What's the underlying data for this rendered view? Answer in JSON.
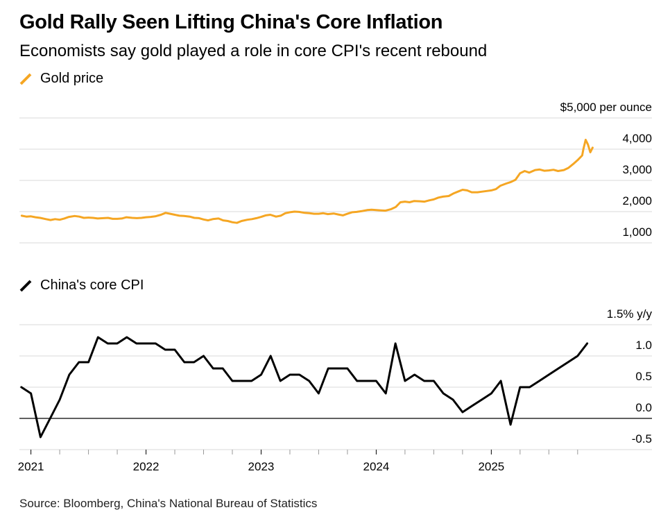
{
  "title": "Gold Rally Seen Lifting China's Core Inflation",
  "subtitle": "Economists say gold played a role in core CPI's recent rebound",
  "source": "Source: Bloomberg, China's National Bureau of Statistics",
  "colors": {
    "gold": "#F5A623",
    "cpi": "#000000",
    "grid": "#d9d9d9",
    "zero": "#000000"
  },
  "chart_data": [
    {
      "type": "line",
      "legend": "Gold price",
      "unit_label": "$5,000 per ounce",
      "ylim": [
        1000,
        5000
      ],
      "yticks": [
        1000,
        2000,
        3000,
        4000,
        5000
      ],
      "ytick_labels": [
        "1,000",
        "2,000",
        "3,000",
        "4,000",
        "$5,000 per ounce"
      ],
      "xlim": [
        2020.9,
        2025.95
      ],
      "series": [
        {
          "x": [
            2020.92,
            2020.96,
            2021.0,
            2021.04,
            2021.08,
            2021.13,
            2021.17,
            2021.21,
            2021.25,
            2021.29,
            2021.33,
            2021.38,
            2021.42,
            2021.46,
            2021.5,
            2021.54,
            2021.58,
            2021.63,
            2021.67,
            2021.71,
            2021.75,
            2021.79,
            2021.83,
            2021.88,
            2021.92,
            2021.96,
            2022.0,
            2022.04,
            2022.08,
            2022.13,
            2022.17,
            2022.21,
            2022.25,
            2022.29,
            2022.33,
            2022.38,
            2022.42,
            2022.46,
            2022.5,
            2022.54,
            2022.58,
            2022.63,
            2022.67,
            2022.71,
            2022.75,
            2022.79,
            2022.83,
            2022.88,
            2022.92,
            2022.96,
            2023.0,
            2023.04,
            2023.08,
            2023.13,
            2023.17,
            2023.21,
            2023.25,
            2023.29,
            2023.33,
            2023.38,
            2023.42,
            2023.46,
            2023.5,
            2023.54,
            2023.58,
            2023.63,
            2023.67,
            2023.71,
            2023.75,
            2023.79,
            2023.83,
            2023.88,
            2023.92,
            2023.96,
            2024.0,
            2024.04,
            2024.08,
            2024.13,
            2024.17,
            2024.21,
            2024.25,
            2024.29,
            2024.33,
            2024.38,
            2024.42,
            2024.46,
            2024.5,
            2024.54,
            2024.58,
            2024.63,
            2024.67,
            2024.71,
            2024.75,
            2024.79,
            2024.83,
            2024.88,
            2024.92,
            2024.96,
            2025.0,
            2025.04,
            2025.08,
            2025.13,
            2025.17,
            2025.21,
            2025.25,
            2025.29,
            2025.33,
            2025.38,
            2025.42,
            2025.46,
            2025.5,
            2025.54,
            2025.58,
            2025.63,
            2025.67,
            2025.71,
            2025.75,
            2025.79,
            2025.8,
            2025.82,
            2025.84,
            2025.86,
            2025.88
          ],
          "y": [
            1870,
            1840,
            1850,
            1820,
            1800,
            1760,
            1730,
            1760,
            1740,
            1780,
            1830,
            1860,
            1840,
            1800,
            1810,
            1800,
            1780,
            1790,
            1800,
            1770,
            1770,
            1780,
            1820,
            1800,
            1790,
            1800,
            1820,
            1830,
            1850,
            1900,
            1960,
            1930,
            1900,
            1870,
            1860,
            1840,
            1800,
            1790,
            1750,
            1720,
            1760,
            1780,
            1720,
            1700,
            1660,
            1640,
            1700,
            1740,
            1760,
            1790,
            1830,
            1880,
            1900,
            1840,
            1870,
            1950,
            1980,
            2000,
            1990,
            1960,
            1950,
            1930,
            1930,
            1950,
            1920,
            1940,
            1910,
            1880,
            1930,
            1980,
            1990,
            2020,
            2050,
            2060,
            2050,
            2040,
            2030,
            2080,
            2150,
            2300,
            2320,
            2300,
            2340,
            2330,
            2320,
            2360,
            2390,
            2450,
            2480,
            2500,
            2580,
            2640,
            2700,
            2680,
            2620,
            2620,
            2640,
            2660,
            2680,
            2720,
            2830,
            2900,
            2950,
            3020,
            3230,
            3300,
            3250,
            3330,
            3350,
            3310,
            3320,
            3340,
            3300,
            3330,
            3400,
            3520,
            3650,
            3800,
            4000,
            4300,
            4150,
            3900,
            4050
          ]
        }
      ]
    },
    {
      "type": "line",
      "legend": "China's core CPI",
      "unit_label": "1.5% y/y",
      "ylim": [
        -0.5,
        1.5
      ],
      "yticks": [
        -0.5,
        0.0,
        0.5,
        1.0,
        1.5
      ],
      "ytick_labels": [
        "-0.5",
        "0.0",
        "0.5",
        "1.0",
        "1.5% y/y"
      ],
      "xlim": [
        2020.9,
        2025.95
      ],
      "xticks": [
        2021,
        2022,
        2023,
        2024,
        2025
      ],
      "xtick_labels": [
        "2021",
        "2022",
        "2023",
        "2024",
        "2025"
      ],
      "series": [
        {
          "x": [
            2020.917,
            2021.0,
            2021.083,
            2021.167,
            2021.25,
            2021.333,
            2021.417,
            2021.5,
            2021.583,
            2021.667,
            2021.75,
            2021.833,
            2021.917,
            2022.0,
            2022.083,
            2022.167,
            2022.25,
            2022.333,
            2022.417,
            2022.5,
            2022.583,
            2022.667,
            2022.75,
            2022.833,
            2022.917,
            2023.0,
            2023.083,
            2023.167,
            2023.25,
            2023.333,
            2023.417,
            2023.5,
            2023.583,
            2023.667,
            2023.75,
            2023.833,
            2023.917,
            2024.0,
            2024.083,
            2024.167,
            2024.25,
            2024.333,
            2024.417,
            2024.5,
            2024.583,
            2024.667,
            2024.75,
            2024.833,
            2024.917,
            2025.0,
            2025.083,
            2025.167,
            2025.25,
            2025.333,
            2025.417,
            2025.5,
            2025.583,
            2025.667,
            2025.75,
            2025.833
          ],
          "y": [
            0.5,
            0.4,
            -0.3,
            0.0,
            0.3,
            0.7,
            0.9,
            0.9,
            1.3,
            1.2,
            1.2,
            1.3,
            1.2,
            1.2,
            1.2,
            1.1,
            1.1,
            0.9,
            0.9,
            1.0,
            0.8,
            0.8,
            0.6,
            0.6,
            0.6,
            0.7,
            1.0,
            0.6,
            0.7,
            0.7,
            0.6,
            0.4,
            0.8,
            0.8,
            0.8,
            0.6,
            0.6,
            0.6,
            0.4,
            1.2,
            0.6,
            0.7,
            0.6,
            0.6,
            0.4,
            0.3,
            0.1,
            0.2,
            0.3,
            0.4,
            0.6,
            -0.1,
            0.5,
            0.5,
            0.6,
            0.7,
            0.8,
            0.9,
            1.0,
            1.2
          ]
        }
      ]
    }
  ]
}
